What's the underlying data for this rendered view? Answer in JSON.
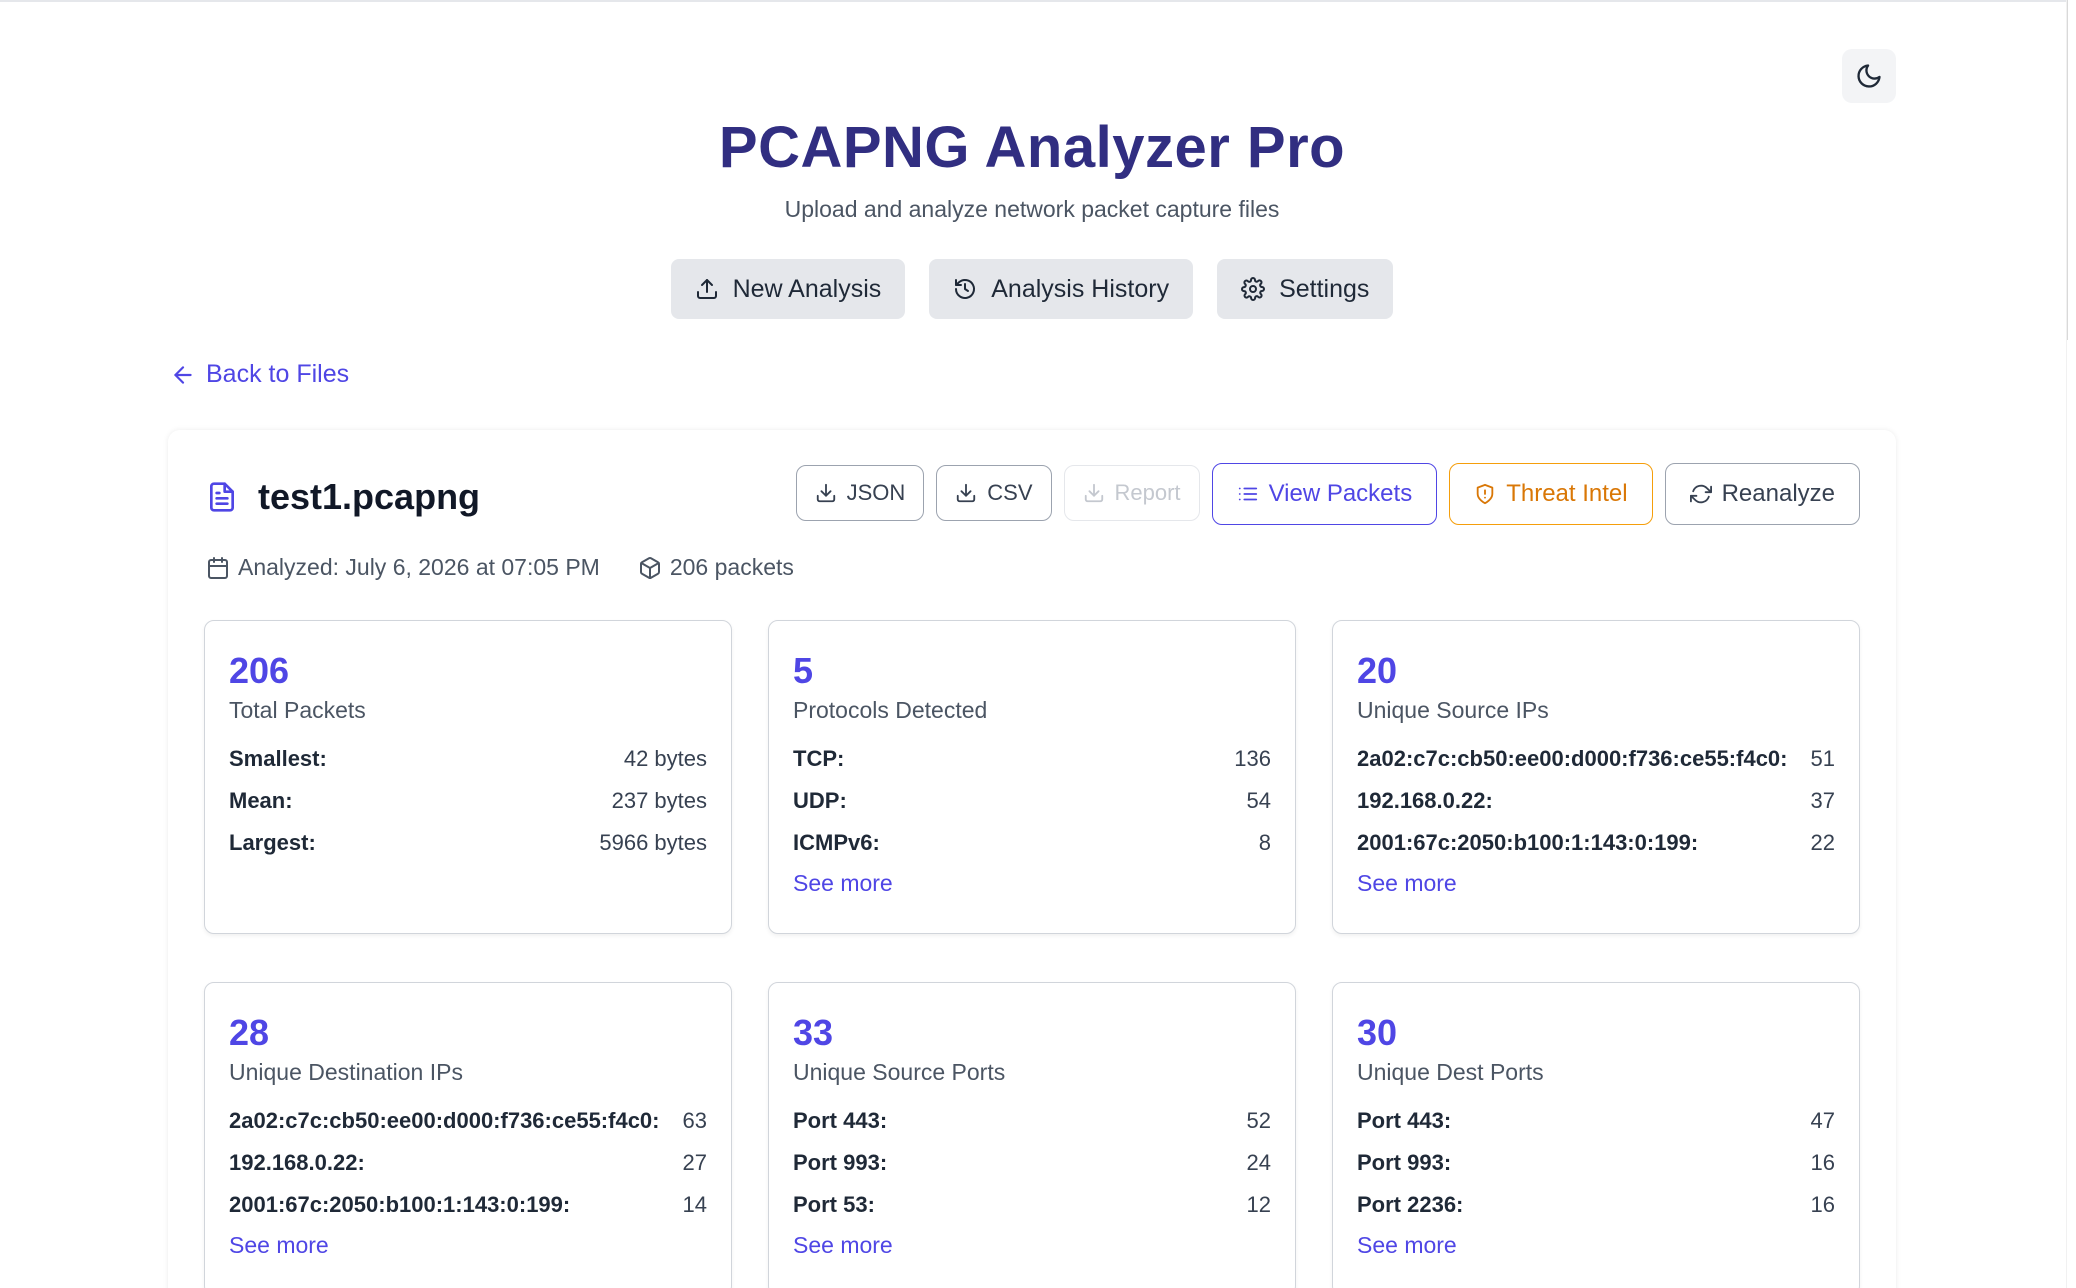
{
  "app": {
    "title": "PCAPNG Analyzer Pro",
    "subtitle": "Upload and analyze network packet capture files"
  },
  "nav": {
    "new_analysis": "New Analysis",
    "history": "Analysis History",
    "settings": "Settings"
  },
  "back_link": "Back to Files",
  "file": {
    "name": "test1.pcapng",
    "analyzed": "Analyzed: July 6, 2026 at 07:05 PM",
    "packets": "206 packets"
  },
  "actions": {
    "json": "JSON",
    "csv": "CSV",
    "report": "Report",
    "view_packets": "View Packets",
    "threat_intel": "Threat Intel",
    "reanalyze": "Reanalyze"
  },
  "colors": {
    "accent": "#4f46e5",
    "title": "#312e81",
    "warn": "#d97706"
  },
  "cards": [
    {
      "value": "206",
      "label": "Total Packets",
      "rows": [
        {
          "k": "Smallest:",
          "v": "42 bytes"
        },
        {
          "k": "Mean:",
          "v": "237 bytes"
        },
        {
          "k": "Largest:",
          "v": "5966 bytes"
        }
      ],
      "see_more": ""
    },
    {
      "value": "5",
      "label": "Protocols Detected",
      "rows": [
        {
          "k": "TCP:",
          "v": "136"
        },
        {
          "k": "UDP:",
          "v": "54"
        },
        {
          "k": "ICMPv6:",
          "v": "8"
        }
      ],
      "see_more": "See more"
    },
    {
      "value": "20",
      "label": "Unique Source IPs",
      "rows": [
        {
          "k": "2a02:c7c:cb50:ee00:d000:f736:ce55:f4c0:",
          "v": "51"
        },
        {
          "k": "192.168.0.22:",
          "v": "37"
        },
        {
          "k": "2001:67c:2050:b100:1:143:0:199:",
          "v": "22"
        }
      ],
      "see_more": "See more"
    },
    {
      "value": "28",
      "label": "Unique Destination IPs",
      "rows": [
        {
          "k": "2a02:c7c:cb50:ee00:d000:f736:ce55:f4c0:",
          "v": "63"
        },
        {
          "k": "192.168.0.22:",
          "v": "27"
        },
        {
          "k": "2001:67c:2050:b100:1:143:0:199:",
          "v": "14"
        }
      ],
      "see_more": "See more"
    },
    {
      "value": "33",
      "label": "Unique Source Ports",
      "rows": [
        {
          "k": "Port 443:",
          "v": "52"
        },
        {
          "k": "Port 993:",
          "v": "24"
        },
        {
          "k": "Port 53:",
          "v": "12"
        }
      ],
      "see_more": "See more"
    },
    {
      "value": "30",
      "label": "Unique Dest Ports",
      "rows": [
        {
          "k": "Port 443:",
          "v": "47"
        },
        {
          "k": "Port 993:",
          "v": "16"
        },
        {
          "k": "Port 2236:",
          "v": "16"
        }
      ],
      "see_more": "See more"
    }
  ]
}
